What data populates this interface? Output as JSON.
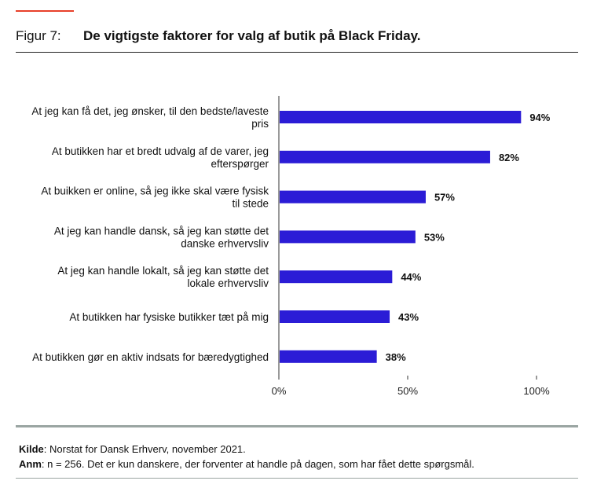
{
  "header": {
    "figure_label": "Figur 7:",
    "title": "De vigtigste faktorer for valg af butik på Black Friday."
  },
  "chart_data": {
    "type": "bar",
    "orientation": "horizontal",
    "categories": [
      [
        "At jeg kan få det, jeg ønsker, til den bedste/laveste",
        "pris"
      ],
      [
        "At butikken har et bredt udvalg af de varer, jeg",
        "efterspørger"
      ],
      [
        "At buikken er online, så jeg ikke skal være fysisk",
        "til stede"
      ],
      [
        "At jeg kan handle dansk, så jeg kan støtte det",
        "danske erhvervsliv"
      ],
      [
        "At jeg kan handle lokalt, så jeg kan støtte det",
        "lokale erhvervsliv"
      ],
      [
        "At butikken har fysiske butikker tæt på mig"
      ],
      [
        "At butikken gør en aktiv indsats for bæredygtighed"
      ]
    ],
    "values": [
      94,
      82,
      57,
      53,
      44,
      43,
      38
    ],
    "value_labels": [
      "94%",
      "82%",
      "57%",
      "53%",
      "44%",
      "43%",
      "38%"
    ],
    "xlim": [
      0,
      100
    ],
    "x_ticks": [
      0,
      50,
      100
    ],
    "x_tick_labels": [
      "0%",
      "50%",
      "100%"
    ],
    "bar_color": "#2b1cd6",
    "grid": false
  },
  "notes": {
    "source_label": "Kilde",
    "source_text": ": Norstat for Dansk Erhverv, november 2021.",
    "note_label": "Anm",
    "note_text": ": n = 256. Det er kun danskere, der forventer at handle på dagen, som har fået dette spørgsmål."
  }
}
